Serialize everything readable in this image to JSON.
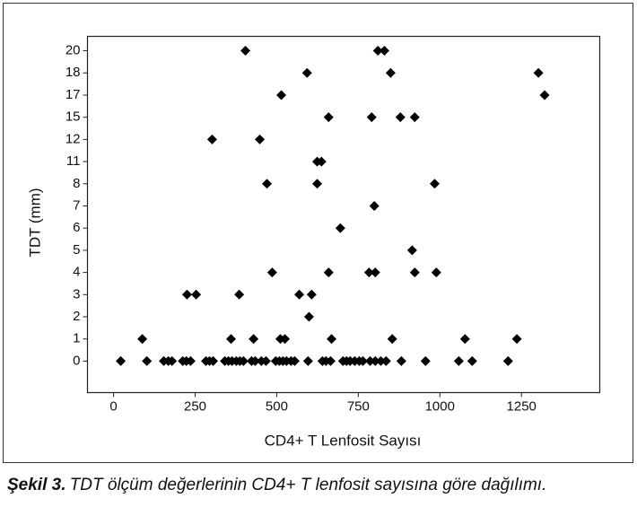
{
  "chart_data": {
    "type": "scatter",
    "x_label": "CD4+ T Lenfosit Sayısı",
    "y_label": "TDT (mm)",
    "y_axis_type": "categorical",
    "marker": "diamond",
    "xlim": [
      -80,
      1490
    ],
    "xticks": [
      0,
      250,
      500,
      750,
      1000,
      1250
    ],
    "yticks": [
      0,
      1,
      2,
      3,
      4,
      5,
      6,
      7,
      8,
      11,
      12,
      15,
      17,
      18,
      20
    ],
    "series": [
      {
        "color": "#000000",
        "x": [
          404,
          810,
          830,
          593,
          849,
          1302,
          514,
          1321,
          659,
          791,
          879,
          923,
          302,
          448,
          624,
          637,
          470,
          624,
          984,
          799,
          695,
          915,
          486,
          659,
          783,
          802,
          923,
          989,
          225,
          253,
          385,
          569,
          607,
          599,
          88,
          360,
          429,
          511,
          525,
          668,
          854,
          1077,
          1236,
          22,
          102,
          154,
          168,
          179,
          212,
          223,
          236,
          283,
          294,
          305,
          341,
          352,
          363,
          376,
          387,
          398,
          423,
          434,
          453,
          467,
          497,
          508,
          519,
          530,
          544,
          555,
          596,
          640,
          651,
          665,
          703,
          714,
          725,
          739,
          753,
          764,
          786,
          802,
          819,
          835,
          882,
          956,
          1058,
          1099,
          1209
        ],
        "values": [
          20,
          20,
          20,
          18,
          18,
          18,
          17,
          17,
          15,
          15,
          15,
          15,
          12,
          12,
          11,
          11,
          8,
          8,
          8,
          7,
          6,
          5,
          4,
          4,
          4,
          4,
          4,
          4,
          3,
          3,
          3,
          3,
          3,
          2,
          1,
          1,
          1,
          1,
          1,
          1,
          1,
          1,
          1,
          0,
          0,
          0,
          0,
          0,
          0,
          0,
          0,
          0,
          0,
          0,
          0,
          0,
          0,
          0,
          0,
          0,
          0,
          0,
          0,
          0,
          0,
          0,
          0,
          0,
          0,
          0,
          0,
          0,
          0,
          0,
          0,
          0,
          0,
          0,
          0,
          0,
          0,
          0,
          0,
          0,
          0,
          0,
          0,
          0,
          0
        ]
      }
    ]
  },
  "figure_caption": {
    "label": "Şekil 3.",
    "text": "TDT ölçüm değerlerinin CD4+ T lenfosit sayısına göre dağılımı."
  }
}
